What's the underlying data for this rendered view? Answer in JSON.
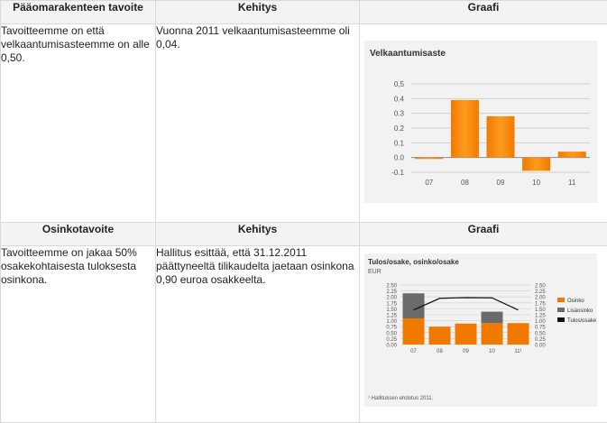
{
  "section1": {
    "headers": [
      "Pääomarakenteen tavoite",
      "Kehitys",
      "Graafi"
    ],
    "goal_text": "Tavoitteemme on että velkaantumisasteemme on alle 0,50.",
    "progress_text": "Vuonna 2011 velkaantumisasteemme oli 0,04."
  },
  "section2": {
    "headers": [
      "Osinkotavoite",
      "Kehitys",
      "Graafi"
    ],
    "goal_text": "Tavoitteemme on jakaa 50% osakekohtaisesta tuloksesta osinkona.",
    "progress_text": "Hallitus esittää, että 31.12.2011 päättyneeltä tilikaudelta jaetaan osinkona 0,90 euroa osakkeelta."
  },
  "chart_data": [
    {
      "type": "bar",
      "title": "Velkaantumisaste",
      "categories": [
        "07",
        "08",
        "09",
        "10",
        "11"
      ],
      "values": [
        -0.01,
        0.39,
        0.28,
        -0.09,
        0.04
      ],
      "ylim": [
        -0.1,
        0.5
      ],
      "yticks": [
        "-0.1",
        "0.0",
        "0.1",
        "0.2",
        "0.3",
        "0.4",
        "0,5"
      ],
      "grid": true,
      "colors": {
        "bar": "#f07a00",
        "bar_light": "#ff9a1e"
      }
    },
    {
      "type": "bar",
      "title": "Tulos/osake, osinko/osake",
      "subtitle": "EUR",
      "categories": [
        "07",
        "08",
        "09",
        "10",
        "11¹"
      ],
      "series": [
        {
          "name": "Osinko",
          "kind": "bar",
          "color": "#f07a00",
          "values": [
            1.1,
            0.75,
            0.88,
            0.9,
            0.9
          ]
        },
        {
          "name": "Lisäosinko",
          "kind": "bar",
          "color": "#6a6a6a",
          "values": [
            1.05,
            0,
            0,
            0.48,
            0
          ]
        },
        {
          "name": "Tulos/osake",
          "kind": "line",
          "color": "#111111",
          "values": [
            1.45,
            1.94,
            1.97,
            1.96,
            1.45
          ]
        }
      ],
      "ylim": [
        0,
        2.5
      ],
      "yticks": [
        "0.00",
        "0.25",
        "0.50",
        "0.75",
        "1.00",
        "1.25",
        "1.50",
        "1.75",
        "2.00",
        "2.25",
        "2.50"
      ],
      "legend": "right",
      "footnote": "¹ Hallituksen ehdotus 2011."
    }
  ]
}
